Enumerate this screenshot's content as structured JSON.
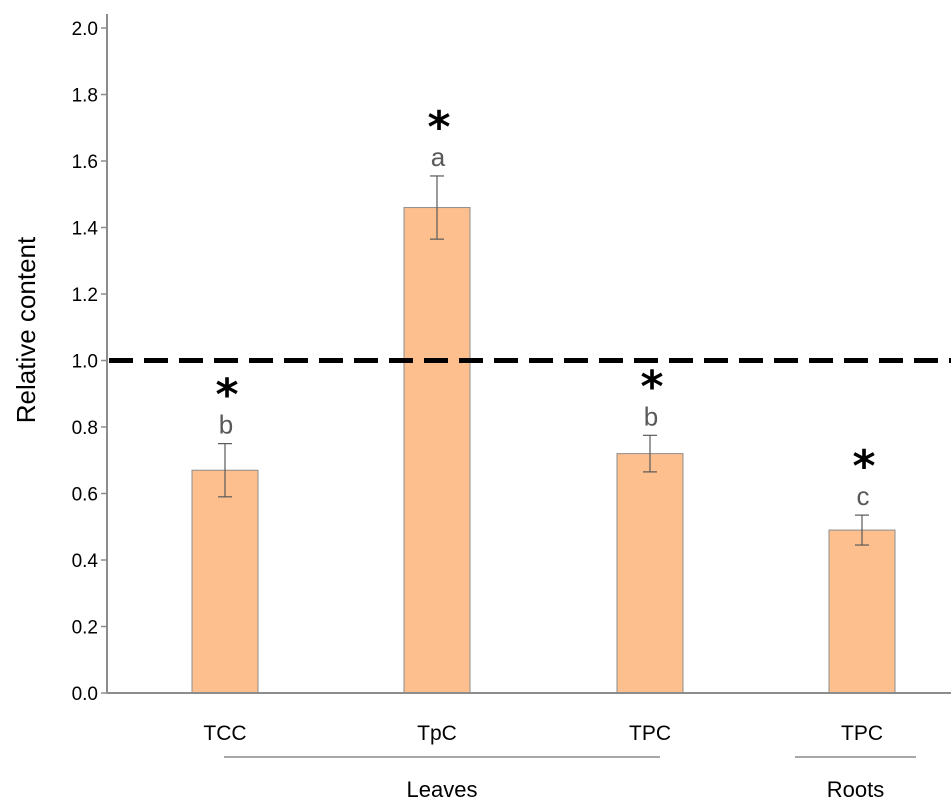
{
  "chart_data": {
    "type": "bar",
    "ylabel": "Relative content",
    "ylim": [
      0,
      2.0
    ],
    "yticks": [
      "0.0",
      "0.2",
      "0.4",
      "0.6",
      "0.8",
      "1.0",
      "1.2",
      "1.4",
      "1.6",
      "1.8",
      "2.0"
    ],
    "categories": [
      "TCC",
      "TpC",
      "TPC",
      "TPC"
    ],
    "values": [
      0.67,
      1.46,
      0.72,
      0.49
    ],
    "errors": [
      0.08,
      0.095,
      0.055,
      0.045
    ],
    "significance_letters": [
      "b",
      "a",
      "b",
      "c"
    ],
    "significance_marks": [
      "*",
      "*",
      "*",
      "*"
    ],
    "groups": [
      {
        "label": "Leaves",
        "categories": [
          0,
          1,
          2
        ]
      },
      {
        "label": "Roots",
        "categories": [
          3
        ]
      }
    ],
    "reference_line": {
      "y": 1.0,
      "style": "dashed"
    },
    "bar_color": "#FDBF8E",
    "bar_edge_color": "#8C8C8C",
    "grid": false
  }
}
